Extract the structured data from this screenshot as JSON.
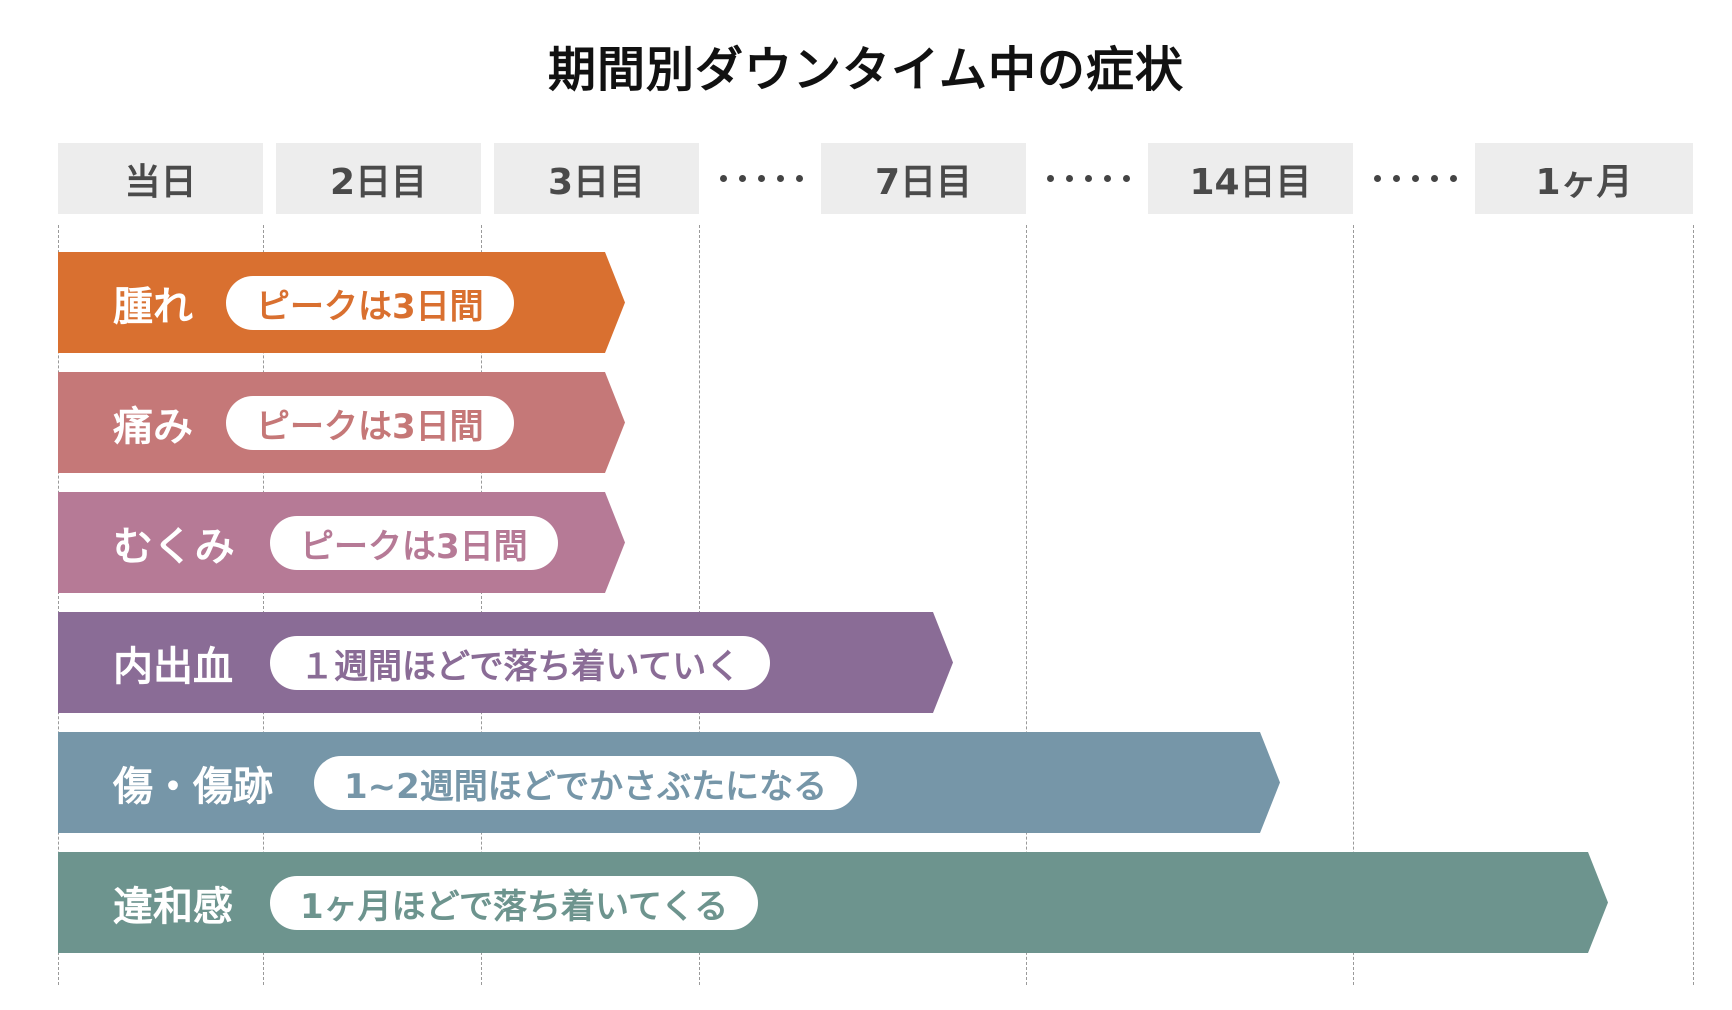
{
  "title": "期間別ダウンタイム中の症状",
  "timeline": {
    "headers": [
      "当日",
      "2日目",
      "3日目",
      "7日目",
      "14日目",
      "1ヶ月"
    ]
  },
  "symptoms": [
    {
      "name": "腫れ",
      "note": "ピークは3日間",
      "color": "#d97030",
      "until": "3日目"
    },
    {
      "name": "痛み",
      "note": "ピークは3日間",
      "color": "#c57878",
      "until": "3日目"
    },
    {
      "name": "むくみ",
      "note": "ピークは3日間",
      "color": "#b67a96",
      "until": "3日目"
    },
    {
      "name": "内出血",
      "note": "１週間ほどで落ち着いていく",
      "color": "#8a6c96",
      "until": "7日目"
    },
    {
      "name": "傷・傷跡",
      "note": "1~2週間ほどでかさぶたになる",
      "color": "#7696a8",
      "until": "14日目"
    },
    {
      "name": "違和感",
      "note": "1ヶ月ほどで落ち着いてくる",
      "color": "#6d948e",
      "until": "1ヶ月"
    }
  ]
}
